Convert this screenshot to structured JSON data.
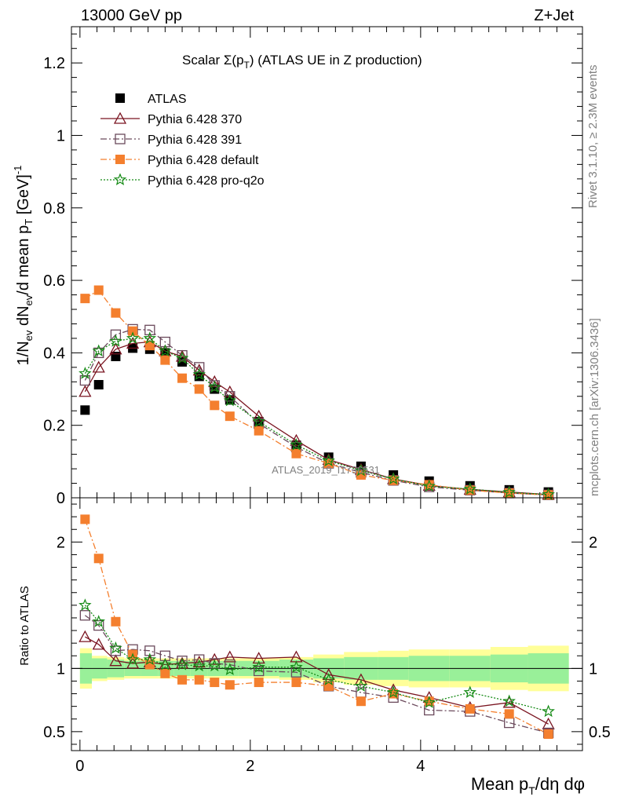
{
  "header": {
    "left": "13000 GeV pp",
    "right": "Z+Jet"
  },
  "side_texts": {
    "rivet": "Rivet 3.1.10, ≥ 2.3M events",
    "mcplots": "mcplots.cern.ch [arXiv:1306.3436]"
  },
  "watermark": "ATLAS_2019_I1736531",
  "chart_data": [
    {
      "type": "scatter",
      "title": "Scalar Σ(p_T) (ATLAS UE in Z production)",
      "title_main": "Scalar Σ(p",
      "title_sub": "T",
      "title_rest": ") (ATLAS UE in Z production)",
      "xlabel": "Mean p_T/dη dφ",
      "ylabel": "1/N_ev dN_ev/d mean p_T [GeV]^-1",
      "xlim": [
        -0.1,
        5.9
      ],
      "ylim": [
        0,
        1.3
      ],
      "yticks": [
        0,
        0.2,
        0.4,
        0.6,
        0.8,
        1,
        1.2
      ],
      "ytick_labels": [
        "0",
        "0.2",
        "0.4",
        "0.6",
        "0.8",
        "1",
        "1.2"
      ],
      "legend_position": "top-left",
      "x": [
        0.06,
        0.22,
        0.42,
        0.62,
        0.82,
        1.0,
        1.2,
        1.4,
        1.58,
        1.76,
        2.1,
        2.54,
        2.92,
        3.3,
        3.68,
        4.1,
        4.58,
        5.04,
        5.5
      ],
      "series": [
        {
          "name": "ATLAS",
          "color": "#000000",
          "marker": "filled-square",
          "line": "none",
          "values": [
            0.242,
            0.312,
            0.39,
            0.413,
            0.41,
            0.4,
            0.375,
            0.335,
            0.3,
            0.27,
            0.21,
            0.145,
            0.112,
            0.087,
            0.063,
            0.046,
            0.033,
            0.022,
            0.016
          ]
        },
        {
          "name": "Pythia 6.428 370",
          "color": "#7a1420",
          "marker": "open-triangle",
          "line": "solid",
          "values": [
            0.293,
            0.36,
            0.41,
            0.426,
            0.43,
            0.405,
            0.39,
            0.352,
            0.32,
            0.292,
            0.225,
            0.158,
            0.105,
            0.078,
            0.052,
            0.034,
            0.023,
            0.016,
            0.009
          ]
        },
        {
          "name": "Pythia 6.428 391",
          "color": "#6b4a5c",
          "marker": "open-square",
          "line": "dashdot",
          "values": [
            0.324,
            0.4,
            0.45,
            0.465,
            0.463,
            0.43,
            0.393,
            0.36,
            0.31,
            0.28,
            0.205,
            0.14,
            0.095,
            0.07,
            0.048,
            0.03,
            0.021,
            0.013,
            0.008
          ]
        },
        {
          "name": "Pythia 6.428 default",
          "color": "#f47f2e",
          "marker": "filled-square",
          "line": "dashdot",
          "values": [
            0.55,
            0.573,
            0.51,
            0.46,
            0.42,
            0.38,
            0.33,
            0.3,
            0.255,
            0.225,
            0.185,
            0.122,
            0.095,
            0.063,
            0.048,
            0.036,
            0.021,
            0.013,
            0.008
          ]
        },
        {
          "name": "Pythia 6.428 pro-q2o",
          "color": "#148a14",
          "marker": "open-star",
          "line": "dotted",
          "values": [
            0.343,
            0.405,
            0.432,
            0.44,
            0.44,
            0.405,
            0.385,
            0.34,
            0.305,
            0.268,
            0.21,
            0.146,
            0.102,
            0.075,
            0.052,
            0.032,
            0.024,
            0.015,
            0.009
          ]
        }
      ]
    },
    {
      "type": "scatter",
      "ylabel": "Ratio to ATLAS",
      "xlim": [
        -0.1,
        5.9
      ],
      "ylim": [
        0.35,
        2.35
      ],
      "xticks": [
        0,
        2,
        4
      ],
      "xtick_labels": [
        "0",
        "2",
        "4"
      ],
      "yticks": [
        0.5,
        1,
        2
      ],
      "ytick_labels": [
        "0.5",
        "1",
        "2"
      ],
      "reference_line": 1,
      "band_x_edges": [
        0,
        0.14,
        0.32,
        0.52,
        0.72,
        0.92,
        1.1,
        1.3,
        1.5,
        1.66,
        1.86,
        2.34,
        2.74,
        3.1,
        3.5,
        3.86,
        4.34,
        4.82,
        5.26,
        5.74
      ],
      "band_inner": [
        0.12,
        0.08,
        0.07,
        0.06,
        0.06,
        0.06,
        0.06,
        0.06,
        0.06,
        0.06,
        0.06,
        0.07,
        0.08,
        0.09,
        0.09,
        0.1,
        0.1,
        0.11,
        0.12
      ],
      "band_outer": [
        0.16,
        0.1,
        0.09,
        0.08,
        0.08,
        0.08,
        0.08,
        0.08,
        0.08,
        0.08,
        0.08,
        0.09,
        0.11,
        0.13,
        0.14,
        0.15,
        0.15,
        0.17,
        0.18
      ],
      "band_inner_color": "#99f099",
      "band_outer_color": "#ffff99",
      "x": [
        0.06,
        0.22,
        0.42,
        0.62,
        0.82,
        1.0,
        1.2,
        1.4,
        1.58,
        1.76,
        2.1,
        2.54,
        2.92,
        3.3,
        3.68,
        4.1,
        4.58,
        5.04,
        5.5
      ],
      "series": [
        {
          "name": "Pythia 6.428 370",
          "values": [
            1.25,
            1.19,
            1.06,
            1.04,
            1.05,
            1.03,
            1.04,
            1.05,
            1.07,
            1.09,
            1.08,
            1.09,
            0.95,
            0.91,
            0.83,
            0.77,
            0.69,
            0.73,
            0.56
          ]
        },
        {
          "name": "Pythia 6.428 391",
          "values": [
            1.42,
            1.34,
            1.14,
            1.15,
            1.14,
            1.1,
            1.06,
            1.07,
            1.04,
            1.03,
            0.98,
            0.97,
            0.86,
            0.81,
            0.77,
            0.67,
            0.66,
            0.57,
            0.49
          ]
        },
        {
          "name": "Pythia 6.428 default",
          "values": [
            2.18,
            1.87,
            1.37,
            1.11,
            1.03,
            0.96,
            0.91,
            0.91,
            0.89,
            0.87,
            0.89,
            0.89,
            0.86,
            0.74,
            0.8,
            0.74,
            0.68,
            0.64,
            0.48
          ]
        },
        {
          "name": "Pythia 6.428 pro-q2o",
          "values": [
            1.5,
            1.37,
            1.16,
            1.07,
            1.07,
            1.03,
            1.03,
            1.02,
            1.02,
            0.99,
            1.01,
            1.01,
            0.91,
            0.86,
            0.81,
            0.73,
            0.81,
            0.74,
            0.66
          ]
        }
      ]
    }
  ]
}
